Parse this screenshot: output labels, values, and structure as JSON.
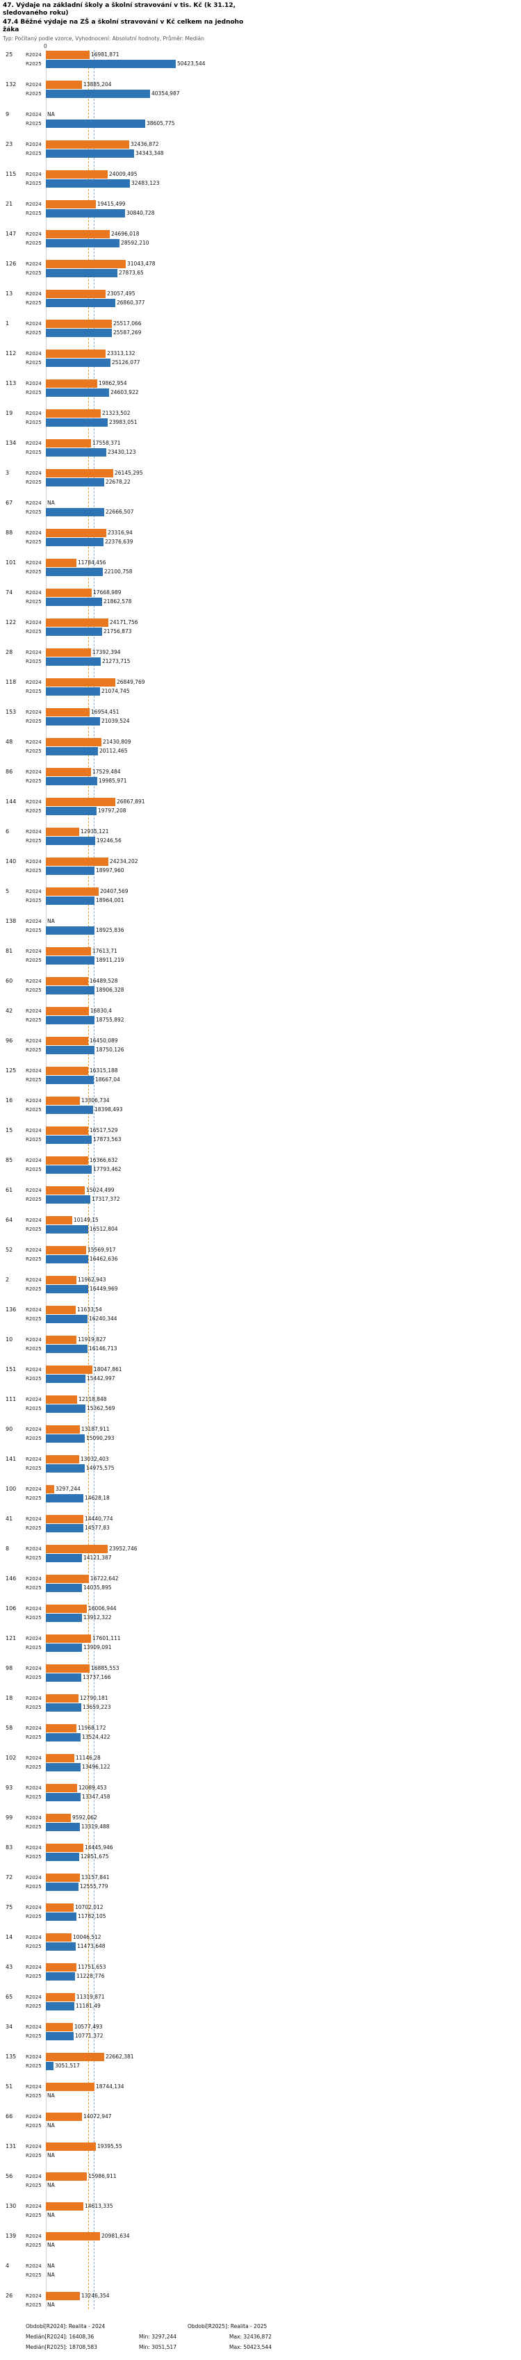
{
  "header": {
    "title": "47. Výdaje na základní školy a školní stravování v tis. Kč (k 31.12, sledovaného roku)",
    "subtitle": "47.4 Běžné výdaje na ZŠ a školní stravování v Kč celkem na jednoho žáka",
    "meta": "Typ: Počítaný podle vzorce, Vyhodnocení: Absolutní hodnoty, Průměr: Medián"
  },
  "axis": {
    "zero_label": "0"
  },
  "colors": {
    "r2024_bar": "#e8771f",
    "r2025_bar": "#2e74b5",
    "median_r2024_line": "#dd9e33",
    "median_r2025_line": "#8aa9cd"
  },
  "chart_data": {
    "type": "bar",
    "orientation": "horizontal",
    "title": "47.4 Běžné výdaje na ZŠ a školní stravování v Kč celkem na jednoho žáka",
    "xlim": [
      0,
      52000
    ],
    "legend_position": "none",
    "grid": "median-lines-only",
    "categories": [
      "25",
      "132",
      "9",
      "23",
      "115",
      "21",
      "147",
      "126",
      "13",
      "1",
      "112",
      "113",
      "19",
      "134",
      "3",
      "67",
      "88",
      "101",
      "74",
      "122",
      "28",
      "118",
      "153",
      "48",
      "86",
      "144",
      "6",
      "140",
      "5",
      "138",
      "81",
      "60",
      "42",
      "96",
      "125",
      "16",
      "15",
      "85",
      "61",
      "64",
      "52",
      "2",
      "136",
      "10",
      "151",
      "111",
      "90",
      "141",
      "100",
      "41",
      "8",
      "146",
      "106",
      "121",
      "98",
      "18",
      "58",
      "102",
      "93",
      "99",
      "83",
      "72",
      "75",
      "14",
      "43",
      "65",
      "34",
      "135",
      "51",
      "66",
      "131",
      "56",
      "130",
      "139",
      "4",
      "26"
    ],
    "series": [
      {
        "name": "R2024",
        "color": "#e8771f",
        "values": [
          16981.871,
          13885.204,
          null,
          32436.872,
          24009.495,
          19415.499,
          24696.018,
          31043.478,
          23057.495,
          25517.066,
          23313.132,
          19862.954,
          21323.502,
          17558.371,
          26145.295,
          null,
          23316.94,
          11784.456,
          17668.989,
          24171.756,
          17392.394,
          26849.769,
          16954.451,
          21430.809,
          17529.484,
          26867.891,
          12935.121,
          24234.202,
          20407.569,
          null,
          17613.71,
          16489.528,
          16830.4,
          16450.089,
          16315.188,
          13306.734,
          16517.529,
          16366.632,
          15024.499,
          10149.15,
          15569.917,
          11962.943,
          11633.54,
          11919.827,
          18047.861,
          12118.848,
          13187.911,
          13032.403,
          3297.244,
          14440.774,
          23952.746,
          16722.642,
          16006.944,
          17601.111,
          16885.553,
          12790.181,
          11968.172,
          11146.28,
          12089.453,
          9592.062,
          14445.946,
          13157.841,
          10702.012,
          10046.512,
          11751.653,
          11319.871,
          10577.493,
          22662.381,
          18744.134,
          14072.947,
          19395.55,
          15986.911,
          14613.335,
          20981.634,
          null,
          13246.354
        ],
        "labels": [
          "16981,871",
          "13885,204",
          "NA",
          "32436,872",
          "24009,495",
          "19415,499",
          "24696,018",
          "31043,478",
          "23057,495",
          "25517,066",
          "23313,132",
          "19862,954",
          "21323,502",
          "17558,371",
          "26145,295",
          "NA",
          "23316,94",
          "11784,456",
          "17668,989",
          "24171,756",
          "17392,394",
          "26849,769",
          "16954,451",
          "21430,809",
          "17529,484",
          "26867,891",
          "12935,121",
          "24234,202",
          "20407,569",
          "NA",
          "17613,71",
          "16489,528",
          "16830,4",
          "16450,089",
          "16315,188",
          "13306,734",
          "16517,529",
          "16366,632",
          "15024,499",
          "10149,15",
          "15569,917",
          "11962,943",
          "11633,54",
          "11919,827",
          "18047,861",
          "12118,848",
          "13187,911",
          "13032,403",
          "3297,244",
          "14440,774",
          "23952,746",
          "16722,642",
          "16006,944",
          "17601,111",
          "16885,553",
          "12790,181",
          "11968,172",
          "11146,28",
          "12089,453",
          "9592,062",
          "14445,946",
          "13157,841",
          "10702,012",
          "10046,512",
          "11751,653",
          "11319,871",
          "10577,493",
          "22662,381",
          "18744,134",
          "14072,947",
          "19395,55",
          "15986,911",
          "14613,335",
          "20981,634",
          "NA",
          "13246,354"
        ]
      },
      {
        "name": "R2025",
        "color": "#2e74b5",
        "values": [
          50423.544,
          40354.987,
          38605.775,
          34343.348,
          32483.123,
          30840.728,
          28592.21,
          27873.65,
          26860.377,
          25587.269,
          25126.077,
          24603.922,
          23983.051,
          23430.123,
          22678.22,
          22666.507,
          22376.639,
          22100.758,
          21862.578,
          21756.873,
          21273.715,
          21074.745,
          21039.524,
          20112.465,
          19985.971,
          19797.208,
          19246.56,
          18997.96,
          18964.001,
          18925.836,
          18911.219,
          18906.328,
          18755.892,
          18750.126,
          18667.04,
          18398.493,
          17873.563,
          17793.462,
          17317.372,
          16512.804,
          16462.636,
          16449.969,
          16240.344,
          16146.713,
          15442.997,
          15362.569,
          15090.293,
          14975.575,
          14628.18,
          14577.83,
          14121.387,
          14035.895,
          13912.322,
          13909.091,
          13737.166,
          13659.223,
          13524.422,
          13496.122,
          13347.458,
          13319.488,
          12851.675,
          12555.779,
          11782.105,
          11473.648,
          11228.776,
          11181.49,
          10771.372,
          3051.517,
          null,
          null,
          null,
          null,
          null,
          null,
          null,
          null
        ],
        "labels": [
          "50423,544",
          "40354,987",
          "38605,775",
          "34343,348",
          "32483,123",
          "30840,728",
          "28592,210",
          "27873,65",
          "26860,377",
          "25587,269",
          "25126,077",
          "24603,922",
          "23983,051",
          "23430,123",
          "22678,22",
          "22666,507",
          "22376,639",
          "22100,758",
          "21862,578",
          "21756,873",
          "21273,715",
          "21074,745",
          "21039,524",
          "20112,465",
          "19985,971",
          "19797,208",
          "19246,56",
          "18997,960",
          "18964,001",
          "18925,836",
          "18911,219",
          "18906,328",
          "18755,892",
          "18750,126",
          "18667,04",
          "18398,493",
          "17873,563",
          "17793,462",
          "17317,372",
          "16512,804",
          "16462,636",
          "16449,969",
          "16240,344",
          "16146,713",
          "15442,997",
          "15362,569",
          "15090,293",
          "14975,575",
          "14628,18",
          "14577,83",
          "14121,387",
          "14035,895",
          "13912,322",
          "13909,091",
          "13737,166",
          "13659,223",
          "13524,422",
          "13496,122",
          "13347,458",
          "13319,488",
          "12851,675",
          "12555,779",
          "11782,105",
          "11473,648",
          "11228,776",
          "11181,49",
          "10771,372",
          "3051,517",
          "NA",
          "NA",
          "NA",
          "NA",
          "NA",
          "NA",
          "NA",
          "NA"
        ]
      }
    ],
    "medians": {
      "R2024": 16408.36,
      "R2025": 18708.583
    },
    "na_text": "NA"
  },
  "footer": {
    "obdobi_r2024": "Období[R2024]: Realita - 2024",
    "obdobi_r2025": "Období[R2025]: Realita - 2025",
    "median_r2024": "Medián[R2024]: 16408,36",
    "min_r2024": "Min: 3297,244",
    "max_r2024": "Max: 32436,872",
    "median_r2025": "Medián[R2025]: 18708,583",
    "min_r2025": "Min: 3051,517",
    "max_r2025": "Max: 50423,544"
  }
}
